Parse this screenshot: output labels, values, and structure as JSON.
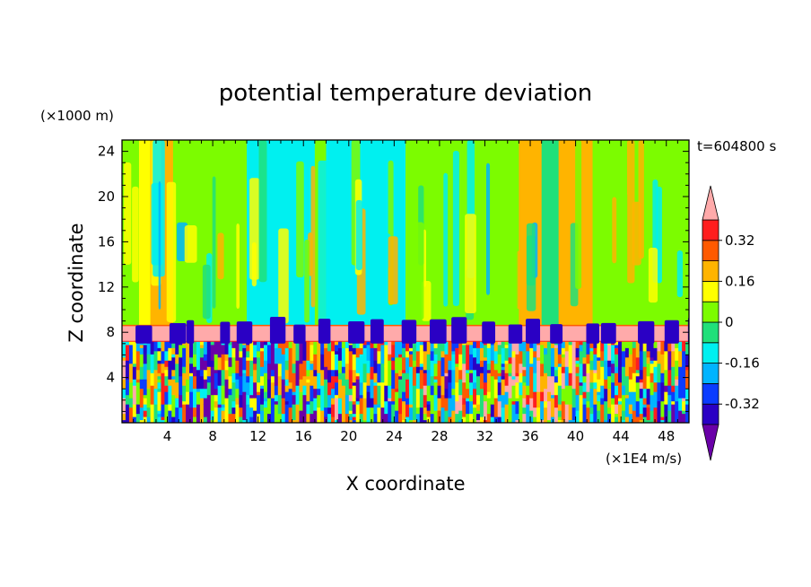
{
  "chart_data": {
    "type": "heatmap",
    "title": "potential temperature deviation",
    "xlabel": "X coordinate",
    "ylabel": "Z coordinate",
    "x_unit": "(×1E4 m/s)",
    "y_unit": "(×1000 m)",
    "time_label": "t=604800 s",
    "xlim": [
      0,
      50
    ],
    "ylim": [
      0,
      25
    ],
    "x_ticks": [
      "4",
      "8",
      "12",
      "16",
      "20",
      "24",
      "28",
      "32",
      "36",
      "40",
      "44",
      "48"
    ],
    "y_ticks": [
      "4",
      "8",
      "12",
      "16",
      "20",
      "24"
    ],
    "colorbar": {
      "levels": [
        -0.4,
        -0.32,
        -0.24,
        -0.16,
        -0.08,
        0,
        0.08,
        0.16,
        0.24,
        0.32,
        0.4
      ],
      "colors": [
        "#6a00a8",
        "#2a00c4",
        "#0a3cff",
        "#00b4ff",
        "#00f0f0",
        "#20e07a",
        "#7cfc00",
        "#ffff00",
        "#ffb400",
        "#ff5a00",
        "#ff1e1e",
        "#ffaaaa"
      ],
      "labels": [
        "0.32",
        "0.16",
        "0",
        "-0.16",
        "-0.32"
      ]
    },
    "upper_bands": [
      {
        "x": [
          0,
          1.5
        ],
        "value": 0.02
      },
      {
        "x": [
          1.5,
          2.5
        ],
        "value": 0.12
      },
      {
        "x": [
          2.5,
          4.5
        ],
        "value": 0.2
      },
      {
        "x": [
          4.5,
          7
        ],
        "value": 0.06
      },
      {
        "x": [
          7,
          11
        ],
        "value": 0.02
      },
      {
        "x": [
          11,
          17
        ],
        "value": -0.1
      },
      {
        "x": [
          17,
          18
        ],
        "value": 0.02
      },
      {
        "x": [
          18,
          25
        ],
        "value": -0.12
      },
      {
        "x": [
          25,
          35
        ],
        "value": 0.06
      },
      {
        "x": [
          35,
          37
        ],
        "value": 0.2
      },
      {
        "x": [
          37,
          38.5
        ],
        "value": -0.04
      },
      {
        "x": [
          38.5,
          41.5
        ],
        "value": 0.22
      },
      {
        "x": [
          41.5,
          50
        ],
        "value": 0.06
      }
    ],
    "tropopause_z": [
      7.2,
      8.6
    ],
    "tropopause_value": 0.4
  }
}
